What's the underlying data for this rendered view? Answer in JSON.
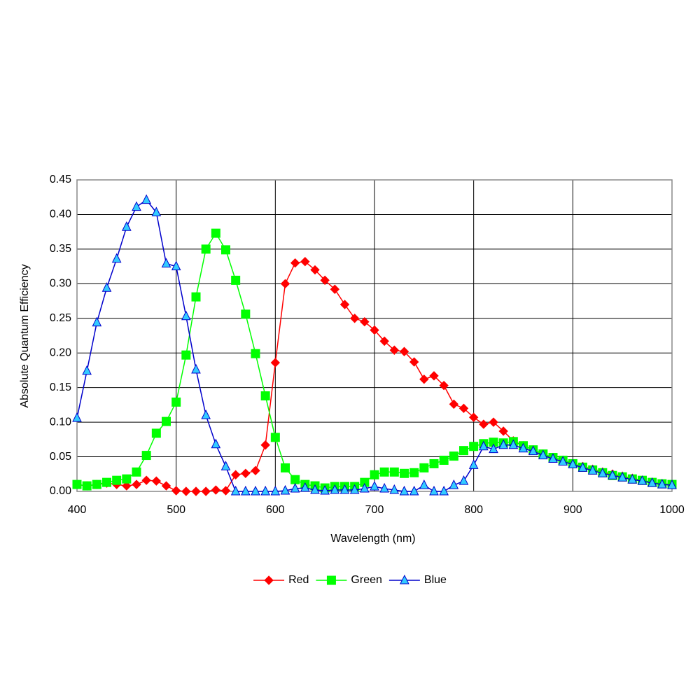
{
  "chart_data": {
    "type": "line",
    "x_label": "Wavelength (nm)",
    "y_label": "Absolute Quantum Efficiency",
    "x": [
      400,
      410,
      420,
      430,
      440,
      450,
      460,
      470,
      480,
      490,
      500,
      510,
      520,
      530,
      540,
      550,
      560,
      570,
      580,
      590,
      600,
      610,
      620,
      630,
      640,
      650,
      660,
      670,
      680,
      690,
      700,
      710,
      720,
      730,
      740,
      750,
      760,
      770,
      780,
      790,
      800,
      810,
      820,
      830,
      840,
      850,
      860,
      870,
      880,
      890,
      900,
      910,
      920,
      930,
      940,
      950,
      960,
      970,
      980,
      990,
      1000
    ],
    "series": [
      {
        "name": "Red",
        "color": "#ff0000",
        "marker": "diamond",
        "values": [
          0.01,
          0.008,
          0.01,
          0.012,
          0.01,
          0.008,
          0.01,
          0.016,
          0.015,
          0.008,
          0.001,
          0,
          0,
          0,
          0.002,
          0.001,
          0.024,
          0.026,
          0.03,
          0.067,
          0.186,
          0.3,
          0.33,
          0.332,
          0.32,
          0.305,
          0.292,
          0.27,
          0.25,
          0.245,
          0.233,
          0.217,
          0.204,
          0.202,
          0.187,
          0.162,
          0.167,
          0.153,
          0.126,
          0.12,
          0.107,
          0.097,
          0.1,
          0.087,
          0.073,
          0.066,
          0.06,
          0.054,
          0.049,
          0.045,
          0.04,
          0.036,
          0.032,
          0.028,
          0.025,
          0.022,
          0.019,
          0.016,
          0.013,
          0.011,
          0.01
        ]
      },
      {
        "name": "Green",
        "color": "#00ff00",
        "marker": "square",
        "values": [
          0.01,
          0.008,
          0.01,
          0.013,
          0.016,
          0.018,
          0.028,
          0.052,
          0.084,
          0.101,
          0.129,
          0.197,
          0.281,
          0.35,
          0.373,
          0.349,
          0.305,
          0.256,
          0.199,
          0.138,
          0.078,
          0.034,
          0.017,
          0.01,
          0.008,
          0.005,
          0.007,
          0.007,
          0.007,
          0.013,
          0.024,
          0.028,
          0.028,
          0.026,
          0.027,
          0.034,
          0.04,
          0.045,
          0.051,
          0.059,
          0.065,
          0.069,
          0.071,
          0.07,
          0.072,
          0.066,
          0.06,
          0.054,
          0.049,
          0.045,
          0.04,
          0.035,
          0.031,
          0.027,
          0.023,
          0.021,
          0.018,
          0.016,
          0.013,
          0.011,
          0.01
        ]
      },
      {
        "name": "Blue",
        "color": "#0000cc",
        "marker": "triangle",
        "marker_fill": "#33ccff",
        "values": [
          0.106,
          0.174,
          0.244,
          0.294,
          0.336,
          0.382,
          0.411,
          0.421,
          0.403,
          0.329,
          0.325,
          0.253,
          0.176,
          0.11,
          0.068,
          0.036,
          0,
          0,
          0,
          0,
          0,
          0.001,
          0.004,
          0.005,
          0.002,
          0.001,
          0.002,
          0.002,
          0.002,
          0.004,
          0.007,
          0.004,
          0.002,
          0,
          0,
          0.009,
          0,
          0,
          0.009,
          0.015,
          0.038,
          0.065,
          0.061,
          0.067,
          0.067,
          0.062,
          0.058,
          0.052,
          0.047,
          0.043,
          0.039,
          0.034,
          0.03,
          0.026,
          0.023,
          0.02,
          0.017,
          0.015,
          0.012,
          0.01,
          0.009
        ]
      }
    ],
    "xlim": [
      400,
      1000
    ],
    "xticks": [
      400,
      500,
      600,
      700,
      800,
      900,
      1000
    ],
    "ylim": [
      0,
      0.45
    ],
    "yticks": [
      {
        "value": 0,
        "label": "0.00"
      },
      0.05,
      {
        "value": 0.1,
        "label": "0.10"
      },
      0.15,
      {
        "value": 0.2,
        "label": "0.20"
      },
      0.25,
      {
        "value": 0.3,
        "label": "0.30"
      },
      0.35,
      {
        "value": 0.4,
        "label": "0.40"
      },
      0.45
    ],
    "grid": true,
    "legend": "bottom"
  }
}
